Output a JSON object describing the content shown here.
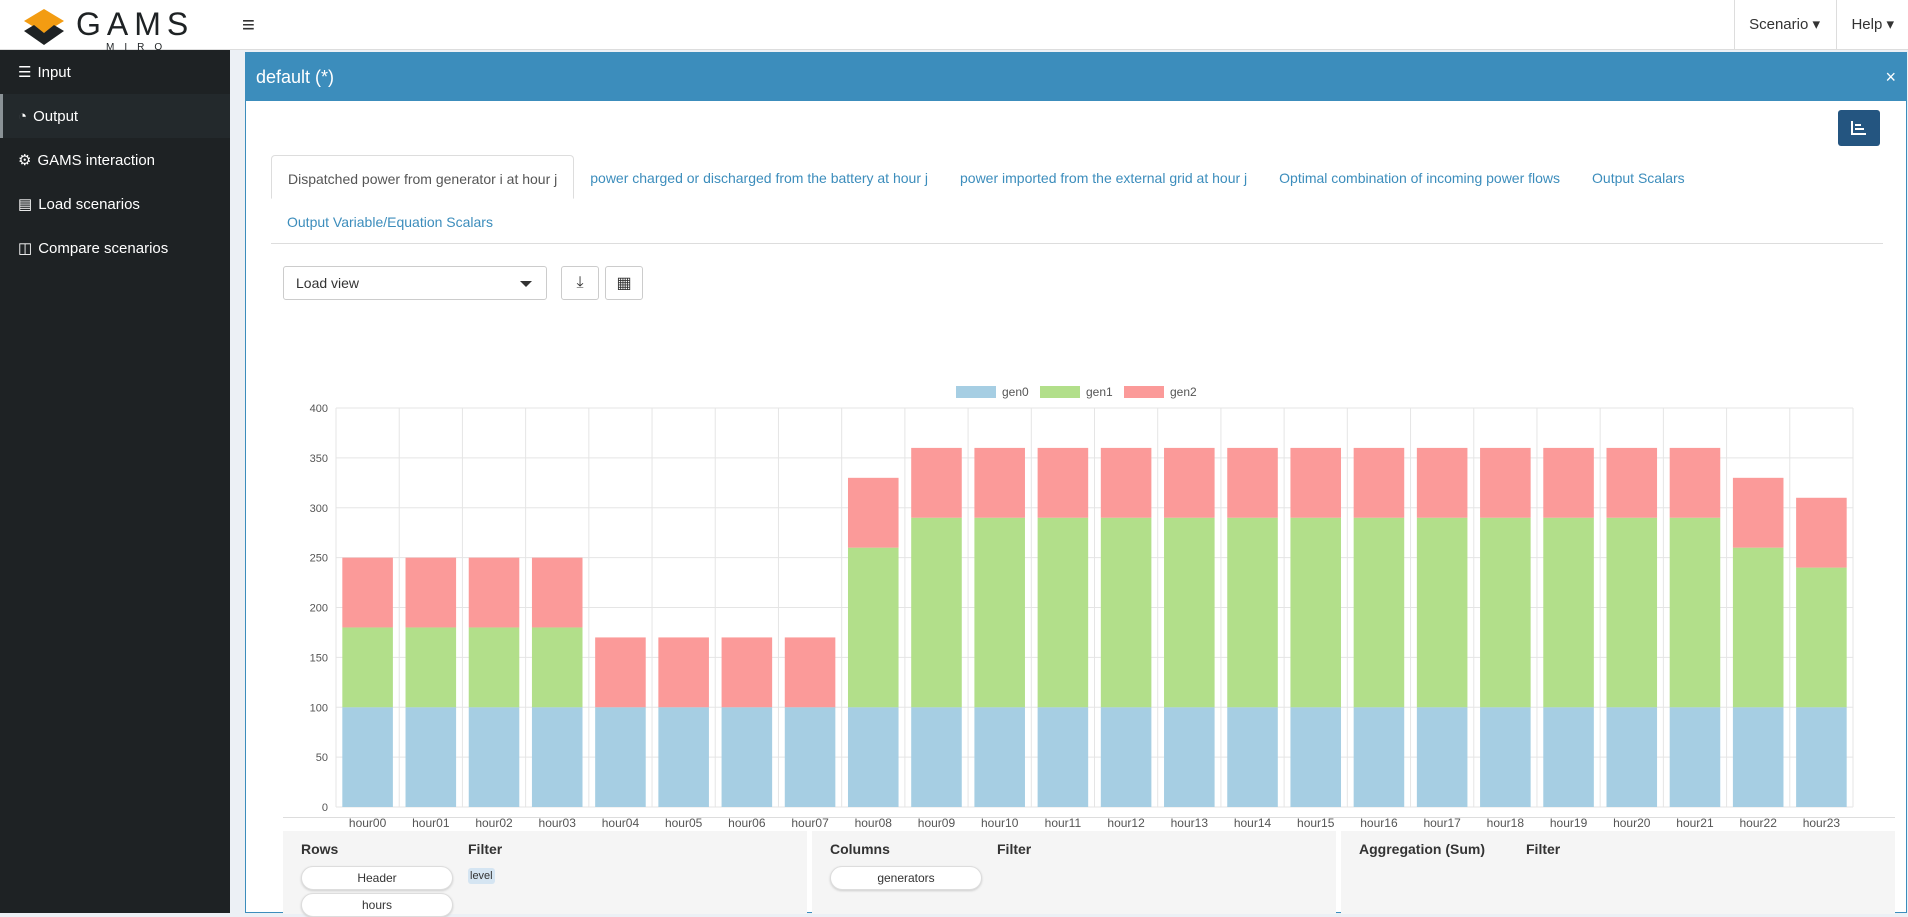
{
  "app": {
    "logo_text": "GAMS",
    "logo_sub": "MIRO"
  },
  "topnav": {
    "scenario": "Scenario",
    "help": "Help"
  },
  "sidebar": {
    "items": [
      {
        "label": "Input",
        "icon": "sliders-icon"
      },
      {
        "label": "Output",
        "icon": "pie-chart-icon",
        "active": true
      },
      {
        "label": "GAMS interaction",
        "icon": "gear-icon"
      },
      {
        "label": "Load scenarios",
        "icon": "database-icon"
      },
      {
        "label": "Compare scenarios",
        "icon": "columns-icon"
      }
    ]
  },
  "panel": {
    "title": "default (*)",
    "close": "×"
  },
  "tabs": [
    "Dispatched power from generator i at hour j",
    "power charged or discharged from the battery at hour j",
    "power imported from the external grid at hour j",
    "Optimal combination of incoming power flows",
    "Output Scalars",
    "Output Variable/Equation Scalars"
  ],
  "toolbar": {
    "load_view": "Load view"
  },
  "chart_data": {
    "type": "bar",
    "stacked": true,
    "legend_position": "top",
    "grid": true,
    "categories": [
      "hour00",
      "hour01",
      "hour02",
      "hour03",
      "hour04",
      "hour05",
      "hour06",
      "hour07",
      "hour08",
      "hour09",
      "hour10",
      "hour11",
      "hour12",
      "hour13",
      "hour14",
      "hour15",
      "hour16",
      "hour17",
      "hour18",
      "hour19",
      "hour20",
      "hour21",
      "hour22",
      "hour23"
    ],
    "ylim": [
      0,
      400
    ],
    "yticks": [
      0,
      50,
      100,
      150,
      200,
      250,
      300,
      350,
      400
    ],
    "series": [
      {
        "name": "gen0",
        "color": "#a6cee3",
        "values": [
          100,
          100,
          100,
          100,
          100,
          100,
          100,
          100,
          100,
          100,
          100,
          100,
          100,
          100,
          100,
          100,
          100,
          100,
          100,
          100,
          100,
          100,
          100,
          100
        ]
      },
      {
        "name": "gen1",
        "color": "#b2df8a",
        "values": [
          80,
          80,
          80,
          80,
          0,
          0,
          0,
          0,
          160,
          190,
          190,
          190,
          190,
          190,
          190,
          190,
          190,
          190,
          190,
          190,
          190,
          190,
          160,
          140
        ]
      },
      {
        "name": "gen2",
        "color": "#fb9a99",
        "values": [
          70,
          70,
          70,
          70,
          70,
          70,
          70,
          70,
          70,
          70,
          70,
          70,
          70,
          70,
          70,
          70,
          70,
          70,
          70,
          70,
          70,
          70,
          70,
          70
        ]
      }
    ]
  },
  "pivot": {
    "rows_label": "Rows",
    "filter_label": "Filter",
    "columns_label": "Columns",
    "aggregation_label": "Aggregation (Sum)",
    "row_fields": [
      "Header",
      "hours"
    ],
    "filter_tag": "level",
    "column_fields": [
      "generators"
    ]
  }
}
